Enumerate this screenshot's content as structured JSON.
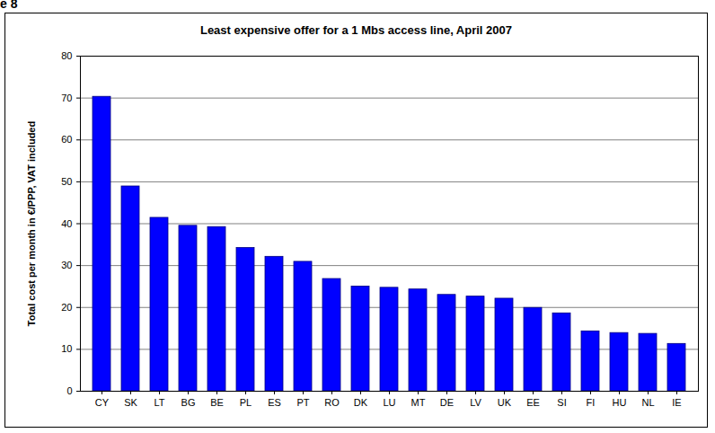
{
  "chart_data": {
    "type": "bar",
    "title": "Least expensive offer for a 1 Mbs access line, April 2007",
    "y_label": "Total cost per month in €/PPP, VAT included",
    "categories": [
      "CY",
      "SK",
      "LT",
      "BG",
      "BE",
      "PL",
      "ES",
      "PT",
      "RO",
      "DK",
      "LU",
      "MT",
      "DE",
      "LV",
      "UK",
      "EE",
      "SI",
      "FI",
      "HU",
      "NL",
      "IE"
    ],
    "values": [
      70.3,
      48.9,
      41.4,
      39.5,
      39.2,
      34.2,
      32.1,
      30.9,
      26.8,
      25.0,
      24.7,
      24.3,
      23.0,
      22.6,
      22.1,
      19.9,
      18.6,
      14.3,
      13.9,
      13.7,
      11.3
    ],
    "color": "#0000ff",
    "ylim": [
      0,
      80
    ],
    "yticks": [
      0,
      10,
      20,
      30,
      40,
      50,
      60,
      70,
      80
    ],
    "grid": true,
    "annotations": [
      "e 8"
    ]
  }
}
